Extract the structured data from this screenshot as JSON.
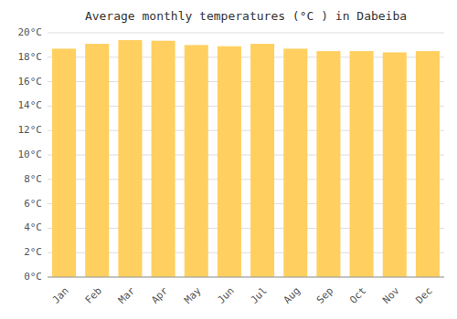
{
  "chart_data": {
    "type": "bar",
    "title": "Average monthly temperatures (°C ) in Dabeiba",
    "categories": [
      "Jan",
      "Feb",
      "Mar",
      "Apr",
      "May",
      "Jun",
      "Jul",
      "Aug",
      "Sep",
      "Oct",
      "Nov",
      "Dec"
    ],
    "values": [
      18.7,
      19.1,
      19.4,
      19.35,
      19.0,
      18.9,
      19.1,
      18.7,
      18.5,
      18.5,
      18.4,
      18.5
    ],
    "color": "#FFD060",
    "ylim": [
      0,
      20
    ],
    "yticks": [
      {
        "value": 0,
        "label": "0°C"
      },
      {
        "value": 2,
        "label": "2°C"
      },
      {
        "value": 4,
        "label": "4°C"
      },
      {
        "value": 6,
        "label": "6°C"
      },
      {
        "value": 8,
        "label": "8°C"
      },
      {
        "value": 10,
        "label": "10°C"
      },
      {
        "value": 12,
        "label": "12°C"
      },
      {
        "value": 14,
        "label": "14°C"
      },
      {
        "value": 16,
        "label": "16°C"
      },
      {
        "value": 18,
        "label": "18°C"
      },
      {
        "value": 20,
        "label": "20°C"
      }
    ],
    "grid": true
  }
}
